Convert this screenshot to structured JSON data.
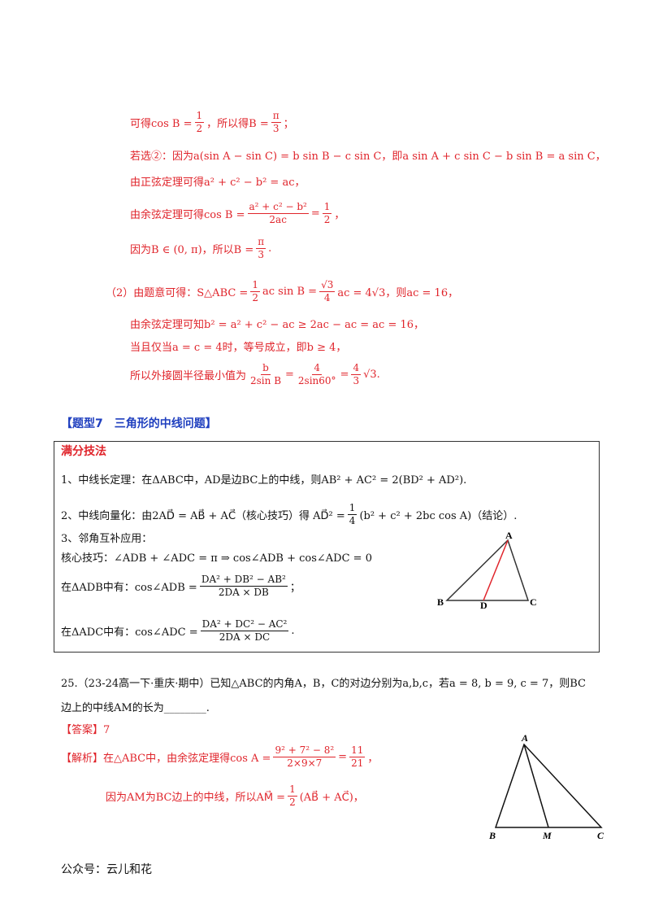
{
  "solution": {
    "lines": [
      {
        "parts": [
          "可得cos B = ",
          {
            "num": "1",
            "den": "2"
          },
          "，所以得B = ",
          {
            "num": "π",
            "den": "3"
          },
          "；"
        ]
      },
      {
        "parts": [
          "若选②：因为a(sin A − sin C) = b sin B − c sin C，即a sin A + c sin C − b sin B = a sin C，"
        ]
      },
      {
        "parts": [
          "由正弦定理可得a² + c² − b² = ac，"
        ]
      },
      {
        "parts": [
          "由余弦定理可得cos B = ",
          {
            "num": "a² + c² − b²",
            "den": "2ac"
          },
          " = ",
          {
            "num": "1",
            "den": "2"
          },
          "，"
        ]
      },
      {
        "parts": [
          "因为B ∈ (0, π)，所以B = ",
          {
            "num": "π",
            "den": "3"
          },
          "."
        ]
      },
      {
        "parts": [
          "（2）由题意可得：S△ABC = ",
          {
            "num": "1",
            "den": "2"
          },
          "ac sin B = ",
          {
            "num": "√3",
            "den": "4"
          },
          "ac = 4√3，则ac = 16，"
        ]
      },
      {
        "parts": [
          "由余弦定理可知b² = a² + c² − ac ≥ 2ac − ac = ac = 16，"
        ]
      },
      {
        "parts": [
          "当且仅当a = c = 4时，等号成立，即b ≥ 4，"
        ]
      },
      {
        "parts": [
          "所以外接圆半径最小值为",
          {
            "num": "b",
            "den": "2sin B"
          },
          " = ",
          {
            "num": "4",
            "den": "2sin60°"
          },
          " = ",
          {
            "num": "4",
            "den": "3"
          },
          "√3."
        ]
      }
    ]
  },
  "heading": {
    "text": "【题型7　三角形的中线问题】"
  },
  "tips_box": {
    "title": "满分技法",
    "lines": [
      {
        "parts": [
          "1、中线长定理：在ΔABC中，AD是边BC上的中线，则AB² + AC² = 2(BD² + AD²)."
        ]
      },
      {
        "parts": [
          "2、中线向量化：由2AD⃗ = AB⃗ + AC⃗（核心技巧）得 AD⃗² = ",
          {
            "num": "1",
            "den": "4"
          },
          "(b² + c² + 2bc cos A)（结论）."
        ]
      },
      {
        "parts": [
          "3、邻角互补应用："
        ]
      },
      {
        "parts": [
          "核心技巧：∠ADB + ∠ADC = π ⇒ cos∠ADB + cos∠ADC = 0"
        ]
      },
      {
        "parts": [
          "在ΔADB中有：cos∠ADB = ",
          {
            "num": "DA² + DB² − AB²",
            "den": "2DA × DB"
          },
          "；"
        ]
      },
      {
        "parts": [
          "在ΔADC中有：cos∠ADC = ",
          {
            "num": "DA² + DC² − AC²",
            "den": "2DA × DC"
          },
          "."
        ]
      }
    ]
  },
  "figure_1": {
    "labels": [
      "A",
      "B",
      "D",
      "C"
    ]
  },
  "problem": {
    "lines": [
      {
        "parts": [
          "25.（23-24高一下·重庆·期中）已知△ABC的内角A，B，C的对边分别为a,b,c，若a = 8, b = 9, c = 7，则BC"
        ]
      },
      {
        "parts": [
          "边上的中线AM的长为________."
        ]
      }
    ]
  },
  "answer": {
    "lines": [
      {
        "parts": [
          "【答案】7"
        ]
      }
    ]
  },
  "analysis": {
    "lines": [
      {
        "parts": [
          "【解析】在△ABC中，由余弦定理得cos A = ",
          {
            "num": "9² + 7² − 8²",
            "den": "2×9×7"
          },
          " = ",
          {
            "num": "11",
            "den": "21"
          },
          "，"
        ]
      },
      {
        "parts": [
          "因为AM为BC边上的中线，所以AM⃗ = ",
          {
            "num": "1",
            "den": "2"
          },
          "(AB⃗ + AC⃗)，"
        ]
      }
    ]
  },
  "figure_2": {
    "labels": [
      "A",
      "B",
      "M",
      "C"
    ]
  },
  "footer": {
    "text": "公众号：云儿和花"
  }
}
